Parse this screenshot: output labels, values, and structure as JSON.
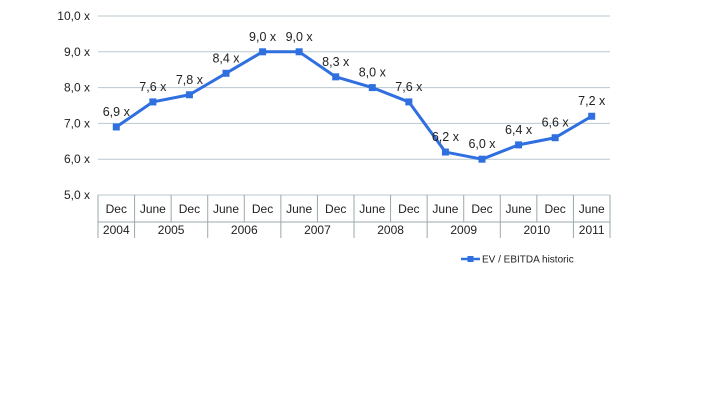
{
  "chart_data": {
    "type": "line",
    "title": "",
    "xlabel": "",
    "ylabel": "",
    "ylim": [
      5.0,
      10.0
    ],
    "y_ticks": [
      "5,0 x",
      "6,0 x",
      "7,0 x",
      "8,0 x",
      "9,0 x",
      "10,0 x"
    ],
    "grid": "horizontal",
    "legend_position": "bottom-right",
    "colors": {
      "series": "#2f6fe0",
      "grid": "#b9c9cf",
      "axis": "#9aa9ad"
    },
    "categories": [
      "Dec",
      "June",
      "Dec",
      "June",
      "Dec",
      "June",
      "Dec",
      "June",
      "Dec",
      "June",
      "Dec",
      "June",
      "Dec",
      "June"
    ],
    "year_groups": [
      {
        "label": "2004",
        "span": 1
      },
      {
        "label": "2005",
        "span": 2
      },
      {
        "label": "2006",
        "span": 2
      },
      {
        "label": "2007",
        "span": 2
      },
      {
        "label": "2008",
        "span": 2
      },
      {
        "label": "2009",
        "span": 2
      },
      {
        "label": "2010",
        "span": 2
      },
      {
        "label": "2011",
        "span": 1
      }
    ],
    "series": [
      {
        "name": "EV / EBITDA historic",
        "values": [
          6.9,
          7.6,
          7.8,
          8.4,
          9.0,
          9.0,
          8.3,
          8.0,
          7.6,
          6.2,
          6.0,
          6.4,
          6.6,
          7.2
        ],
        "labels": [
          "6,9 x",
          "7,6 x",
          "7,8 x",
          "8,4 x",
          "9,0 x",
          "9,0 x",
          "8,3 x",
          "8,0 x",
          "7,6 x",
          "6,2 x",
          "6,0 x",
          "6,4 x",
          "6,6 x",
          "7,2 x"
        ]
      }
    ]
  }
}
